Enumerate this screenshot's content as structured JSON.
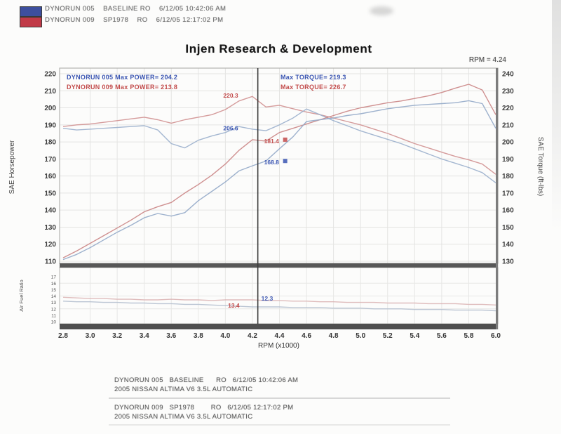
{
  "header": {
    "line1": "DYNORUN 005    BASELINE RO    6/12/05 10:42:06 AM",
    "line2": "DYNORUN 009    SP1978    RO    6/12/05 12:17:02 PM",
    "swatch1_color": "#3d4f9e",
    "swatch2_color": "#c13a47"
  },
  "title": "Injen Research & Development",
  "cursor_readout": "RPM = 4.24",
  "footer": {
    "run1_line1": "DYNORUN 005   BASELINE      RO   6/12/05 10:42:06 AM",
    "run1_line2": "2005 NISSAN ALTIMA V6 3.5L AUTOMATIC",
    "run2_line1": "DYNORUN 009   SP1978        RO   6/12/05 12:17:02 PM",
    "run2_line2": "2005 NISSAN ALTIMA V6 3.5L AUTOMATIC"
  },
  "chart_data": {
    "type": "line",
    "title": "Injen Research & Development",
    "xlabel": "RPM (x1000)",
    "x_ticks": [
      "2.8",
      "3.0",
      "3.2",
      "3.4",
      "3.6",
      "3.8",
      "4.0",
      "4.2",
      "4.4",
      "4.6",
      "4.8",
      "5.0",
      "5.2",
      "5.4",
      "5.6",
      "5.8",
      "6.0"
    ],
    "x_range": [
      2.8,
      6.0
    ],
    "cursor_rpm": 4.24,
    "grid": true,
    "axes": {
      "hp": {
        "label": "SAE Horsepower",
        "ticks": [
          220,
          210,
          200,
          190,
          180,
          170,
          160,
          150,
          140,
          130,
          120,
          110
        ],
        "range": [
          110,
          220
        ]
      },
      "torque": {
        "label": "SAE Torque (ft-lbs)",
        "ticks": [
          240,
          230,
          220,
          210,
          200,
          190,
          180,
          170,
          160,
          150,
          140,
          130
        ],
        "range": [
          130,
          240
        ]
      },
      "afr": {
        "label": "Air Fuel Ratio",
        "ticks": [
          17,
          16,
          15,
          14,
          13,
          12,
          11,
          10
        ],
        "range": [
          10,
          18
        ]
      }
    },
    "x": [
      2.8,
      2.9,
      3.0,
      3.1,
      3.2,
      3.3,
      3.4,
      3.5,
      3.6,
      3.7,
      3.8,
      3.9,
      4.0,
      4.1,
      4.2,
      4.3,
      4.4,
      4.5,
      4.6,
      4.7,
      4.8,
      4.9,
      5.0,
      5.1,
      5.2,
      5.3,
      5.4,
      5.5,
      5.6,
      5.7,
      5.8,
      5.9,
      6.0
    ],
    "series": [
      {
        "name": "dynorun-009-torque",
        "axis": "torque",
        "color": "#d09090",
        "values": [
          209,
          210,
          210.5,
          211.5,
          212.5,
          213.5,
          214.5,
          213,
          211,
          213,
          214.5,
          216,
          219,
          224,
          226.7,
          220.5,
          221.5,
          219.5,
          217.5,
          216,
          214,
          212,
          210,
          207.5,
          205,
          202,
          199,
          196.5,
          194,
          191.5,
          189.5,
          187,
          181
        ]
      },
      {
        "name": "dynorun-005-torque",
        "axis": "torque",
        "color": "#9aafcc",
        "values": [
          208,
          207,
          207.5,
          208,
          208.5,
          209,
          209.5,
          207,
          199,
          196.5,
          201,
          203.5,
          205.5,
          209,
          207.5,
          206.6,
          210,
          214,
          219.3,
          216,
          212.5,
          209.5,
          206.5,
          204,
          201.5,
          199,
          196,
          193,
          190,
          187.5,
          185,
          182,
          176
        ]
      },
      {
        "name": "dynorun-009-power",
        "axis": "hp",
        "color": "#ca8484",
        "values": [
          112,
          116,
          120.5,
          125,
          129.5,
          134,
          139,
          142,
          144.5,
          150,
          155,
          160.5,
          167,
          175,
          181.3,
          180.5,
          185.5,
          188,
          190.5,
          193,
          195.5,
          198,
          200,
          201.5,
          203,
          204,
          205.5,
          207,
          209,
          211.5,
          213.8,
          210.5,
          196
        ]
      },
      {
        "name": "dynorun-005-power",
        "axis": "hp",
        "color": "#92a8c8",
        "values": [
          111,
          114,
          118,
          122.5,
          127,
          131,
          135.5,
          138,
          136.5,
          138.5,
          145.5,
          151,
          156.5,
          163,
          166,
          168.8,
          176,
          183,
          192,
          193,
          194,
          195.5,
          196.5,
          198,
          199.5,
          200.5,
          201.5,
          202,
          202.5,
          203,
          204.2,
          202.5,
          188
        ]
      },
      {
        "name": "dynorun-009-afr",
        "axis": "afr",
        "color": "#dcb5b5",
        "values": [
          13.8,
          13.7,
          13.6,
          13.6,
          13.5,
          13.5,
          13.4,
          13.4,
          13.5,
          13.4,
          13.4,
          13.3,
          13.4,
          13.4,
          13.4,
          13.3,
          13.3,
          13.2,
          13.2,
          13.1,
          13.1,
          13.0,
          13.0,
          13.0,
          12.9,
          12.9,
          12.9,
          12.8,
          12.8,
          12.8,
          12.7,
          12.7,
          12.6
        ]
      },
      {
        "name": "dynorun-005-afr",
        "axis": "afr",
        "color": "#b5c0cf",
        "values": [
          13.2,
          13.1,
          13.1,
          13.0,
          13.0,
          12.9,
          12.9,
          12.8,
          12.8,
          12.7,
          12.7,
          12.6,
          12.5,
          12.4,
          12.3,
          12.3,
          12.3,
          12.2,
          12.2,
          12.2,
          12.1,
          12.1,
          12.1,
          12.0,
          12.0,
          12.0,
          11.9,
          11.9,
          11.9,
          11.8,
          11.8,
          11.8,
          11.7
        ]
      }
    ],
    "legend_power": [
      {
        "label": "DYNORUN 005  Max POWER= 204.2",
        "color": "#3a55b2"
      },
      {
        "label": "DYNORUN 009  Max POWER= 213.8",
        "color": "#c24a4a"
      }
    ],
    "legend_torque": [
      {
        "label": "Max TORQUE= 219.3",
        "color": "#3a55b2"
      },
      {
        "label": "Max TORQUE= 226.7",
        "color": "#c24a4a"
      }
    ],
    "callouts": [
      {
        "text": "220.3",
        "rpm": 4.24,
        "axis": "torque",
        "value": 227.2,
        "color": "#c24a4a",
        "dx": -28,
        "marker": false
      },
      {
        "text": "206.6",
        "rpm": 4.24,
        "axis": "torque",
        "value": 208.0,
        "color": "#3a55b2",
        "dx": -28,
        "marker": false
      },
      {
        "text": "181.4",
        "rpm": 4.24,
        "axis": "hp",
        "value": 180.5,
        "color": "#c24a4a",
        "dx": 9,
        "marker": true
      },
      {
        "text": "168.8",
        "rpm": 4.24,
        "axis": "hp",
        "value": 168.0,
        "color": "#3a55b2",
        "dx": 9,
        "marker": true
      },
      {
        "text": "12.3",
        "rpm": 4.24,
        "axis": "afr",
        "value": 13.6,
        "color": "#3a55b2",
        "dx": 5,
        "marker": false
      },
      {
        "text": "13.4",
        "rpm": 4.24,
        "axis": "afr",
        "value": 12.5,
        "color": "#c24a4a",
        "dx": -26,
        "marker": false
      }
    ]
  }
}
